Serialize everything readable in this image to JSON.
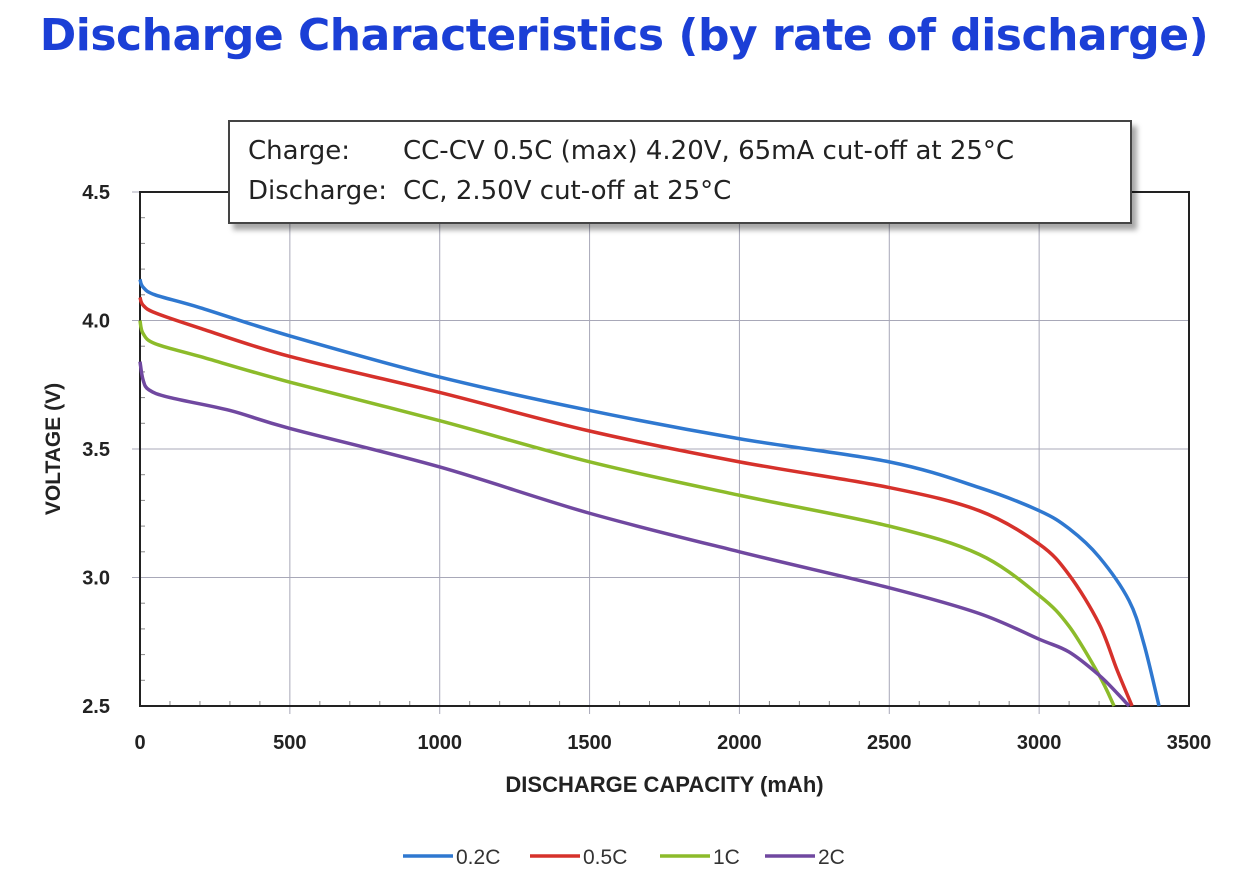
{
  "chart_data": {
    "type": "line",
    "title": "Discharge Characteristics (by rate of discharge)",
    "annotation": {
      "rows": [
        {
          "label": "Charge:",
          "text": "CC-CV 0.5C (max) 4.20V, 65mA cut-off at 25°C"
        },
        {
          "label": "Discharge:",
          "text": "CC, 2.50V cut-off at 25°C"
        }
      ]
    },
    "xlabel": "DISCHARGE CAPACITY (mAh)",
    "ylabel": "VOLTAGE (V)",
    "xlim": [
      0,
      3500
    ],
    "ylim": [
      2.5,
      4.5
    ],
    "xticks": [
      "0",
      "500",
      "1000",
      "1500",
      "2000",
      "2500",
      "3000",
      "3500"
    ],
    "yticks": [
      "2.5",
      "3.0",
      "3.5",
      "4.0",
      "4.5"
    ],
    "grid": true,
    "legend_position": "bottom",
    "series": [
      {
        "name": "0.2C",
        "color": "#2f78d0",
        "x": [
          0,
          10,
          50,
          200,
          500,
          1000,
          1500,
          2000,
          2500,
          2800,
          3000,
          3100,
          3200,
          3300,
          3350,
          3400
        ],
        "y": [
          4.16,
          4.13,
          4.1,
          4.05,
          3.94,
          3.78,
          3.65,
          3.54,
          3.45,
          3.35,
          3.26,
          3.19,
          3.08,
          2.91,
          2.74,
          2.5
        ]
      },
      {
        "name": "0.5C",
        "color": "#d6312b",
        "x": [
          0,
          10,
          50,
          200,
          500,
          1000,
          1500,
          2000,
          2500,
          2800,
          3000,
          3100,
          3200,
          3260,
          3310
        ],
        "y": [
          4.09,
          4.06,
          4.03,
          3.97,
          3.86,
          3.72,
          3.57,
          3.45,
          3.35,
          3.26,
          3.13,
          3.01,
          2.82,
          2.64,
          2.5
        ]
      },
      {
        "name": "1C",
        "color": "#8cbb2a",
        "x": [
          0,
          10,
          50,
          200,
          500,
          1000,
          1500,
          2000,
          2500,
          2800,
          3000,
          3100,
          3200,
          3250
        ],
        "y": [
          4.0,
          3.95,
          3.91,
          3.86,
          3.76,
          3.61,
          3.45,
          3.32,
          3.2,
          3.09,
          2.93,
          2.81,
          2.62,
          2.5
        ]
      },
      {
        "name": "2C",
        "color": "#7048a0",
        "x": [
          0,
          10,
          30,
          100,
          300,
          500,
          1000,
          1500,
          2000,
          2500,
          2800,
          3000,
          3100,
          3200,
          3260,
          3300
        ],
        "y": [
          3.84,
          3.77,
          3.73,
          3.7,
          3.65,
          3.58,
          3.43,
          3.25,
          3.1,
          2.96,
          2.86,
          2.76,
          2.71,
          2.62,
          2.55,
          2.5
        ]
      }
    ]
  }
}
